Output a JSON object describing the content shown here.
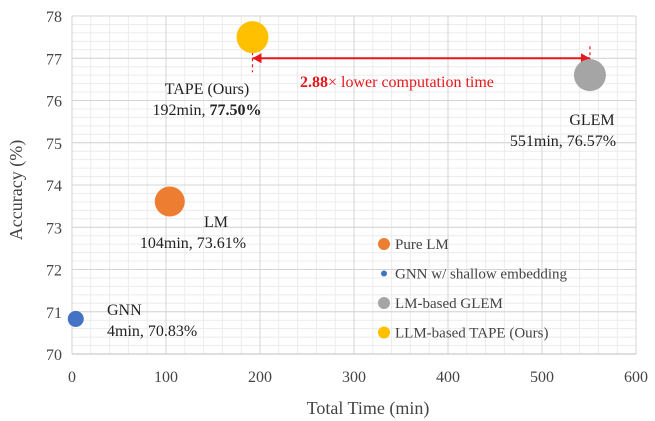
{
  "chart_data": {
    "type": "scatter",
    "xlabel": "Total Time (min)",
    "ylabel": "Accuracy (%)",
    "xlim": [
      0,
      600
    ],
    "ylim": [
      70,
      78
    ],
    "x_ticks": [
      "0",
      "100",
      "200",
      "300",
      "400",
      "500",
      "600"
    ],
    "y_ticks": [
      "70",
      "71",
      "72",
      "73",
      "74",
      "75",
      "76",
      "77",
      "78"
    ],
    "grid": true,
    "legend_position": "bottom-right",
    "points": [
      {
        "legend": "GNN  w/ shallow embedding",
        "name": "GNN",
        "time_label": "4min, 70.83%",
        "x": 4,
        "y": 70.83,
        "color": "#4472c4",
        "size": "small"
      },
      {
        "legend": "Pure LM",
        "name": "LM",
        "time_label": "104min, 73.61%",
        "x": 104,
        "y": 73.61,
        "color": "#ed7d31",
        "size": "medium"
      },
      {
        "legend": "LLM-based TAPE (Ours)",
        "name": "TAPE (Ours)",
        "time_label": "192min, ",
        "time_label_bold": "77.50%",
        "x": 192,
        "y": 77.5,
        "color": "#ffc000",
        "size": "large"
      },
      {
        "legend": "LM-based GLEM",
        "name": "GLEM",
        "time_label": "551min, 76.57%",
        "x": 551,
        "y": 76.6,
        "color": "#a5a5a5",
        "size": "large"
      }
    ],
    "legend_order": [
      "Pure LM",
      "GNN  w/ shallow embedding",
      "LM-based GLEM",
      "LLM-based TAPE (Ours)"
    ],
    "comparison": {
      "bold_value": "2.88",
      "text": "× lower computation time",
      "from_x": 192,
      "to_x": 551,
      "y": 77,
      "color": "#e8171c"
    }
  }
}
